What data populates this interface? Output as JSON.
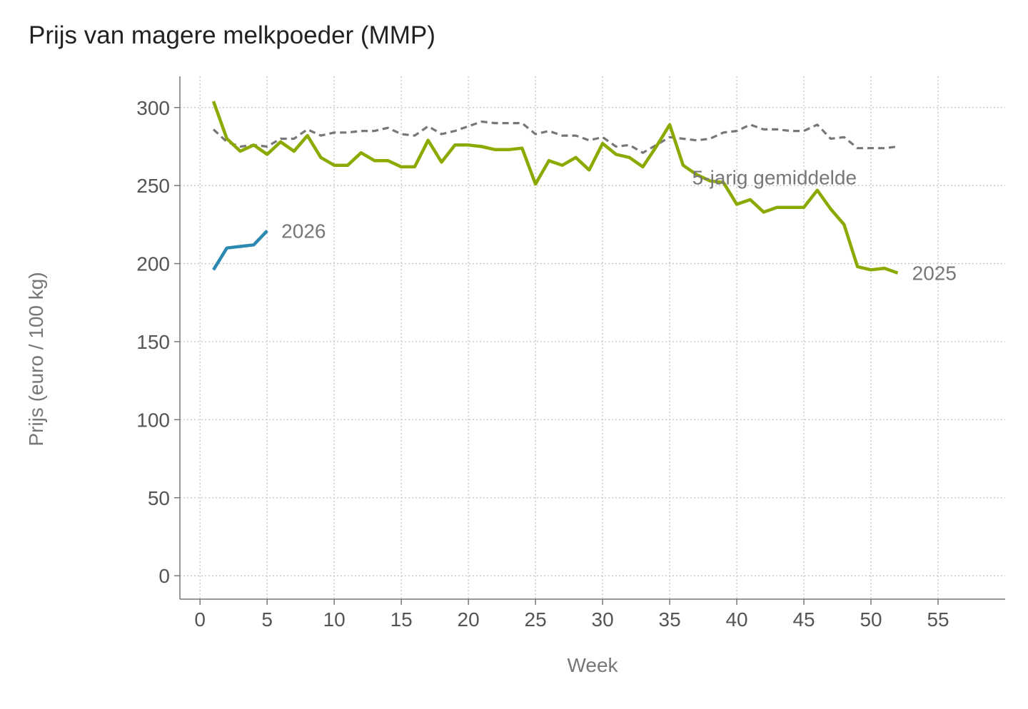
{
  "chart_data": {
    "type": "line",
    "title": "Prijs van magere melkpoeder (MMP)",
    "xlabel": "Week",
    "ylabel": "Prijs (euro / 100 kg)",
    "xlim": [
      -1.5,
      60
    ],
    "ylim": [
      -15,
      320
    ],
    "xticks": [
      0,
      5,
      10,
      15,
      20,
      25,
      30,
      35,
      40,
      45,
      50,
      55
    ],
    "yticks": [
      0,
      50,
      100,
      150,
      200,
      250,
      300
    ],
    "grid": true,
    "series": [
      {
        "name": "5-jarig gemiddelde",
        "label": "5-jarig gemiddelde",
        "color": "#777777",
        "style": "dashed",
        "x": [
          1,
          2,
          3,
          4,
          5,
          6,
          7,
          8,
          9,
          10,
          11,
          12,
          13,
          14,
          15,
          16,
          17,
          18,
          19,
          20,
          21,
          22,
          23,
          24,
          25,
          26,
          27,
          28,
          29,
          30,
          31,
          32,
          33,
          34,
          35,
          36,
          37,
          38,
          39,
          40,
          41,
          42,
          43,
          44,
          45,
          46,
          47,
          48,
          49,
          50,
          51,
          52
        ],
        "values": [
          286,
          278,
          275,
          276,
          275,
          280,
          280,
          286,
          282,
          284,
          284,
          285,
          285,
          287,
          283,
          282,
          288,
          283,
          285,
          288,
          291,
          290,
          290,
          290,
          283,
          285,
          282,
          282,
          279,
          281,
          275,
          276,
          271,
          276,
          281,
          280,
          279,
          280,
          284,
          285,
          289,
          286,
          286,
          285,
          285,
          289,
          280,
          281,
          274,
          274,
          274,
          275
        ]
      },
      {
        "name": "2025",
        "label": "2025",
        "color": "#8aaa00",
        "style": "solid",
        "x": [
          1,
          2,
          3,
          4,
          5,
          6,
          7,
          8,
          9,
          10,
          11,
          12,
          13,
          14,
          15,
          16,
          17,
          18,
          19,
          20,
          21,
          22,
          23,
          24,
          25,
          26,
          27,
          28,
          29,
          30,
          31,
          32,
          33,
          34,
          35,
          36,
          37,
          38,
          39,
          40,
          41,
          42,
          43,
          44,
          45,
          46,
          47,
          48,
          49,
          50,
          51,
          52
        ],
        "values": [
          304,
          280,
          272,
          276,
          270,
          278,
          272,
          282,
          268,
          263,
          263,
          271,
          266,
          266,
          262,
          262,
          279,
          265,
          276,
          276,
          275,
          273,
          273,
          274,
          251,
          266,
          263,
          268,
          260,
          277,
          270,
          268,
          262,
          275,
          289,
          263,
          257,
          253,
          252,
          238,
          241,
          233,
          236,
          236,
          236,
          247,
          235,
          225,
          198,
          196,
          197,
          194
        ]
      },
      {
        "name": "2026",
        "label": "2026",
        "color": "#2b88b0",
        "style": "solid",
        "x": [
          1,
          2,
          3,
          4,
          5
        ],
        "values": [
          196,
          210,
          211,
          212,
          221
        ]
      }
    ]
  }
}
